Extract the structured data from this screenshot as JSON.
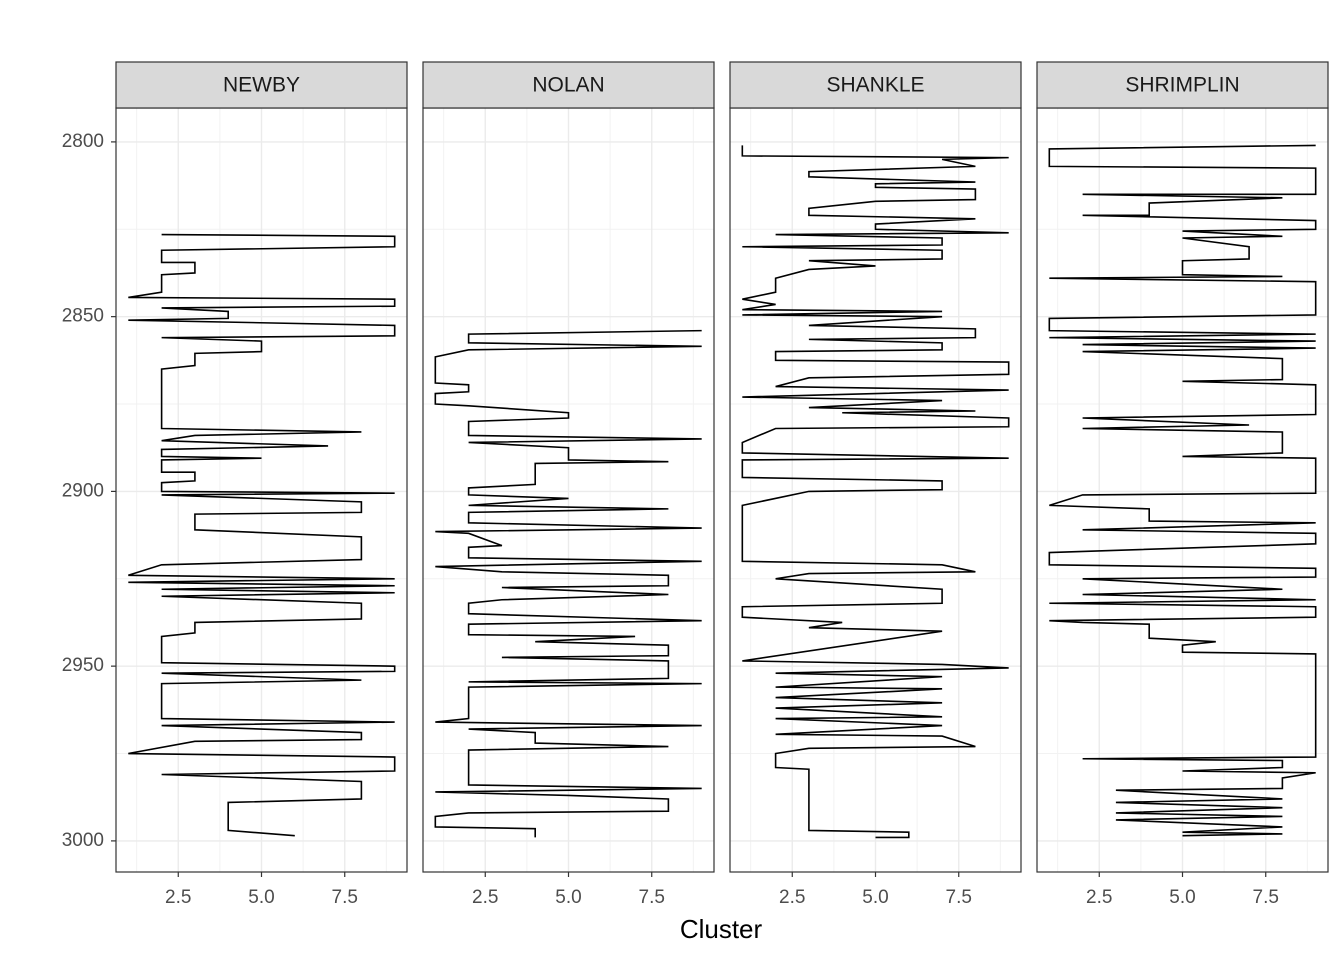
{
  "chart_data": {
    "type": "line",
    "x_label": "Cluster",
    "color": "#000000",
    "grid": true,
    "xlim": [
      0.63,
      9.37
    ],
    "ylim": [
      3008.9,
      2790.3
    ],
    "xticks": [
      2.5,
      {
        "value": 5,
        "label": "5.0"
      },
      7.5
    ],
    "yticks": [
      2800,
      2850,
      2900,
      2950,
      3000
    ],
    "panels": [
      {
        "title": "NEWBY",
        "x": [
          2,
          9,
          9,
          2,
          2,
          3,
          3,
          2,
          2,
          1,
          9,
          9,
          2,
          4,
          4,
          1,
          9,
          9,
          2,
          5,
          5,
          3,
          3,
          2,
          2,
          8,
          3,
          2,
          7,
          2,
          2,
          5,
          2,
          2,
          3,
          3,
          2,
          2,
          9,
          2,
          8,
          8,
          3,
          3,
          8,
          8,
          2,
          1,
          9,
          1,
          9,
          2,
          9,
          2,
          8,
          8,
          3,
          3,
          2,
          2,
          9,
          9,
          2,
          8,
          2,
          2,
          9,
          2,
          8,
          8,
          3,
          1,
          9,
          9,
          2,
          8,
          8,
          4,
          4,
          6
        ],
        "values": [
          2826.5,
          2827,
          2830,
          2831,
          2834.5,
          2834.5,
          2837.5,
          2838,
          2843,
          2844.5,
          2845,
          2847,
          2847.5,
          2848.5,
          2850.5,
          2851,
          2852.5,
          2855.5,
          2856,
          2857,
          2860,
          2860.5,
          2864,
          2865,
          2882,
          2883,
          2884,
          2885.5,
          2887,
          2888,
          2890,
          2890.5,
          2891,
          2894.5,
          2894.5,
          2897,
          2897.5,
          2900,
          2900.5,
          2901,
          2903,
          2906,
          2906.5,
          2911,
          2913,
          2919.5,
          2921,
          2924,
          2925,
          2926,
          2927,
          2928,
          2929,
          2930,
          2932,
          2936.5,
          2937.5,
          2940.5,
          2941.5,
          2949,
          2950,
          2951.5,
          2952,
          2954,
          2955,
          2965,
          2966,
          2967,
          2969,
          2971,
          2971.5,
          2975,
          2976,
          2980,
          2981,
          2983,
          2988,
          2989,
          2997,
          2998.5
        ]
      },
      {
        "title": "NOLAN",
        "x": [
          9,
          2,
          2,
          9,
          2,
          1,
          1,
          2,
          2,
          1,
          1,
          2,
          5,
          5,
          2,
          2,
          9,
          2,
          5,
          5,
          8,
          4,
          4,
          2,
          2,
          5,
          2,
          8,
          2,
          2,
          9,
          1,
          2,
          3,
          2,
          2,
          9,
          1,
          3,
          8,
          8,
          3,
          8,
          3,
          2,
          2,
          9,
          2,
          2,
          7,
          4,
          8,
          8,
          3,
          8,
          8,
          2,
          9,
          2,
          2,
          1,
          9,
          2,
          4,
          4,
          8,
          2,
          2,
          9,
          1,
          5,
          8,
          8,
          2,
          1,
          1,
          4,
          4
        ],
        "values": [
          2854,
          2855,
          2857.5,
          2858.5,
          2859.5,
          2861.5,
          2869,
          2869.5,
          2871.5,
          2872,
          2875,
          2875.5,
          2877.5,
          2879,
          2880,
          2884,
          2885,
          2886,
          2887.5,
          2891,
          2891.5,
          2892,
          2898,
          2899,
          2901,
          2902,
          2904,
          2905,
          2906,
          2909,
          2910.5,
          2911.5,
          2912,
          2915.5,
          2916,
          2919,
          2920,
          2921.5,
          2923,
          2924,
          2927,
          2927.5,
          2929.5,
          2931,
          2932,
          2935,
          2937,
          2938,
          2941,
          2941.5,
          2943,
          2944,
          2947,
          2947.5,
          2948.5,
          2953.5,
          2954.5,
          2955,
          2956,
          2965,
          2966,
          2967,
          2968,
          2969,
          2972,
          2973,
          2974,
          2984,
          2985,
          2986,
          2987,
          2988,
          2991.5,
          2992,
          2993,
          2996,
          2996.5,
          2999
        ]
      },
      {
        "title": "SHANKLE",
        "x": [
          1,
          1,
          9,
          7,
          8,
          3,
          3,
          8,
          5,
          5,
          8,
          8,
          5,
          3,
          3,
          8,
          5,
          5,
          9,
          2,
          7,
          7,
          1,
          7,
          7,
          3,
          5,
          3,
          2,
          2,
          1,
          2,
          1,
          7,
          1,
          7,
          3,
          8,
          8,
          3,
          7,
          7,
          2,
          2,
          9,
          9,
          3,
          2,
          9,
          1,
          7,
          3,
          8,
          4,
          9,
          9,
          2,
          1,
          1,
          9,
          1,
          1,
          7,
          7,
          3,
          1,
          1,
          7,
          8,
          3,
          2,
          7,
          7,
          1,
          1,
          4,
          3,
          7,
          1,
          7,
          9,
          2,
          7,
          2,
          7,
          2,
          7,
          2,
          7,
          2,
          7,
          2,
          7,
          8,
          3,
          2,
          2,
          3,
          3,
          6,
          6,
          5
        ],
        "values": [
          2801,
          2804,
          2804.5,
          2805,
          2807,
          2808.5,
          2810,
          2811.5,
          2812,
          2813,
          2813.5,
          2816.5,
          2817,
          2819,
          2821,
          2822,
          2823.5,
          2825,
          2826,
          2826.5,
          2827.5,
          2829.5,
          2830,
          2831,
          2833.5,
          2834,
          2835.5,
          2836.5,
          2839,
          2843,
          2845,
          2846.5,
          2848,
          2848.5,
          2849.5,
          2850,
          2852.5,
          2853.5,
          2856,
          2856.5,
          2857.5,
          2859.5,
          2860,
          2862.5,
          2863,
          2866.5,
          2867.5,
          2870,
          2871,
          2873,
          2874,
          2876,
          2877,
          2877.5,
          2879,
          2881.5,
          2882,
          2886,
          2889,
          2890.5,
          2891,
          2896,
          2897,
          2899.5,
          2900,
          2904,
          2920,
          2921,
          2923,
          2923.5,
          2925,
          2928,
          2932,
          2933,
          2936,
          2937.5,
          2939,
          2940,
          2948.5,
          2949.5,
          2950.5,
          2952,
          2953,
          2956,
          2956.5,
          2959,
          2960.5,
          2962,
          2964.5,
          2965,
          2967,
          2969.5,
          2970,
          2973,
          2973.5,
          2975,
          2979,
          2979.5,
          2997,
          2997.5,
          2999,
          2999
        ]
      },
      {
        "title": "SHRIMPLIN",
        "x": [
          9,
          1,
          1,
          9,
          9,
          2,
          8,
          4,
          4,
          2,
          9,
          9,
          5,
          8,
          5,
          7,
          7,
          5,
          5,
          8,
          1,
          9,
          9,
          1,
          1,
          9,
          1,
          9,
          2,
          9,
          2,
          8,
          8,
          5,
          9,
          9,
          2,
          7,
          2,
          8,
          8,
          5,
          9,
          9,
          2,
          1,
          4,
          4,
          9,
          2,
          9,
          9,
          1,
          1,
          9,
          9,
          2,
          8,
          2,
          9,
          1,
          9,
          9,
          1,
          2,
          4,
          4,
          6,
          5,
          5,
          9,
          9,
          2,
          8,
          8,
          5,
          9,
          8,
          8,
          3,
          8,
          3,
          8,
          3,
          8,
          3,
          8,
          5,
          8,
          5
        ],
        "values": [
          2801,
          2802,
          2807,
          2807.5,
          2815,
          2815,
          2816,
          2817.5,
          2821,
          2821,
          2822.5,
          2825,
          2825.5,
          2827,
          2827.5,
          2830,
          2833.5,
          2834,
          2838,
          2838.5,
          2839,
          2840,
          2849.5,
          2850.5,
          2854,
          2855,
          2856,
          2857,
          2858,
          2859,
          2860,
          2862,
          2868,
          2868.5,
          2869.5,
          2878,
          2879,
          2881,
          2882,
          2883,
          2889,
          2890,
          2890.5,
          2900.5,
          2901,
          2904,
          2905,
          2908.5,
          2909,
          2911,
          2912,
          2915,
          2917.5,
          2921,
          2922,
          2924.5,
          2925,
          2928,
          2929.5,
          2931,
          2932,
          2933,
          2936,
          2937,
          2937.5,
          2938,
          2942,
          2943,
          2944,
          2946,
          2946.5,
          2976,
          2976.5,
          2977,
          2979,
          2980,
          2980.5,
          2982,
          2985,
          2985.5,
          2988,
          2989,
          2990.5,
          2992,
          2993,
          2994,
          2996,
          2997.5,
          2998,
          2998.5
        ]
      }
    ]
  }
}
